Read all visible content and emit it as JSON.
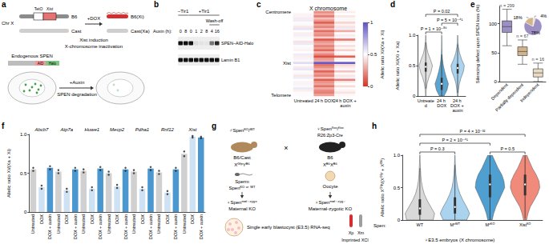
{
  "diagrams": {
    "a": {
      "panel": "a",
      "chr_label": "Chr X",
      "transgene": [
        "TetO",
        "Xist"
      ],
      "alleles": [
        "B6",
        "Cast"
      ],
      "treatment1": "+DOX",
      "treatment1_notes": [
        "Xist induction",
        "X-chromosome inactivation"
      ],
      "result_alleles": [
        "B6(Xi)",
        "Cast(Xa)"
      ],
      "treatment2": "+Auxin",
      "treatment2_note": "SPEN degradation",
      "protein": "Endogenous SPEN",
      "tags": [
        "AID",
        "Halo"
      ]
    },
    "b": {
      "panel": "b",
      "groups": [
        {
          "text": "−Tir1",
          "lanes": [
            0,
            1
          ]
        },
        {
          "text": "+Tir1",
          "lanes": [
            2,
            7
          ]
        }
      ],
      "washoff": {
        "text": "Wash-off",
        "lanes": [
          6,
          7
        ]
      },
      "time_label": "Auxin (h):",
      "lanes": [
        "0",
        "8",
        "0",
        "1",
        "2",
        "8",
        "4",
        "16"
      ],
      "bands": [
        {
          "name": "SPEN–AID-Halo",
          "intensity": [
            1,
            1,
            1,
            0.08,
            0.05,
            0.04,
            0.55,
            0.9
          ]
        },
        {
          "name": "Lamin B1",
          "intensity": [
            1,
            1,
            1,
            1,
            1,
            1,
            1,
            1
          ]
        }
      ]
    },
    "g": {
      "panel": "g",
      "father": {
        "genotype": "♂Spenᴷᴼ/ᵂᵀ",
        "strain": "B6/Cast",
        "chromosomes": "XᴳᶠᵖYᴮ⁶",
        "gamete": "Sperm",
        "gamete_genotype": "Spenᴷᴼ ᵒʳ ᵂᵀ"
      },
      "mother": {
        "genotype": "♀Spenᶠˡᵒˣ/ᶠˡᵒˣ",
        "transgene": "R26:Zp3-Cre",
        "strain": "B6",
        "chromosomes": "Xᴮ⁶Xᴮ⁶",
        "gamete": "Oocyte"
      },
      "cross": "×",
      "offspring": [
        {
          "genotype": "♀Spenᵐᵃᵗ⁻ᶻʸᵍ⁺",
          "label": "Maternal KO"
        },
        {
          "genotype": "♀Spenᵐᵃᵗ⁻ᶻʸᵍ⁻",
          "label": "Maternal-zygotic KO"
        }
      ],
      "assay": "Single early blastocyst (E3.5) RNA-seq",
      "xs": [
        "Xp",
        "Xm"
      ],
      "xci": "Imprinted XCI"
    }
  },
  "chart_data": [
    {
      "panel": "c",
      "type": "heatmap",
      "title": "X chromosome",
      "columns": [
        "Untreated",
        "24 h DOX",
        "24 h DOX + auxin"
      ],
      "rows": [
        "Centromere",
        null,
        null,
        null,
        null,
        null,
        null,
        null,
        null,
        null,
        null,
        null,
        null,
        null,
        null,
        null,
        null,
        null,
        null,
        null,
        null,
        null,
        null,
        null,
        "Xist",
        null,
        null,
        null,
        null,
        null,
        null,
        null,
        null,
        null,
        null,
        null,
        null,
        null,
        null,
        "Telomere"
      ],
      "cells": [
        [
          0.5,
          0.22,
          0.46
        ],
        [
          0.47,
          0.3,
          0.5
        ],
        [
          0.53,
          0.18,
          0.44
        ],
        [
          0.45,
          0.35,
          0.52
        ],
        [
          0.55,
          0.25,
          0.48
        ],
        [
          0.49,
          0.12,
          0.4
        ],
        [
          0.52,
          0.28,
          0.47
        ],
        [
          0.44,
          0.2,
          0.43
        ],
        [
          0.58,
          0.33,
          0.55
        ],
        [
          0.5,
          0.15,
          0.3
        ],
        [
          0.46,
          0.26,
          0.49
        ],
        [
          0.54,
          0.22,
          0.45
        ],
        [
          0.48,
          0.38,
          0.53
        ],
        [
          0.51,
          0.1,
          0.18
        ],
        [
          0.43,
          0.24,
          0.46
        ],
        [
          0.56,
          0.3,
          0.5
        ],
        [
          0.49,
          0.19,
          0.42
        ],
        [
          0.52,
          0.27,
          0.48
        ],
        [
          0.47,
          0.14,
          0.39
        ],
        [
          0.5,
          0.32,
          0.51
        ],
        [
          0.55,
          0.21,
          0.47
        ],
        [
          0.46,
          0.08,
          0.12
        ],
        [
          0.53,
          0.25,
          0.46
        ],
        [
          0.48,
          0.29,
          0.5
        ],
        [
          0.6,
          0.97,
          0.96
        ],
        [
          0.51,
          0.17,
          0.41
        ],
        [
          0.45,
          0.23,
          0.45
        ],
        [
          0.57,
          0.31,
          0.52
        ],
        [
          0.49,
          0.13,
          0.36
        ],
        [
          0.52,
          0.26,
          0.49
        ],
        [
          0.44,
          0.2,
          0.44
        ],
        [
          0.55,
          0.35,
          0.54
        ],
        [
          0.5,
          0.11,
          0.2
        ],
        [
          0.47,
          0.24,
          0.46
        ],
        [
          0.53,
          0.28,
          0.5
        ],
        [
          0.48,
          0.16,
          0.41
        ],
        [
          0.56,
          0.3,
          0.51
        ],
        [
          0.46,
          0.22,
          0.47
        ],
        [
          0.51,
          0.19,
          0.43
        ],
        [
          0.49,
          0.27,
          0.48
        ]
      ],
      "colorbar": {
        "label": "Allelic ratio Xi/(Xa + Xi)",
        "range": [
          0,
          1
        ],
        "ticks": [
          0,
          0.5,
          1
        ],
        "colors": [
          "#d7301f",
          "#ffffff",
          "#5e4fc2"
        ]
      }
    },
    {
      "panel": "d",
      "type": "violin",
      "categories": [
        "Untreated",
        "24 h DOX",
        "24 h DOX + auxin"
      ],
      "ylabel": "Allelic ratio Xi/(Xi + Xa)",
      "ylim": [
        0,
        1
      ],
      "yticks": [
        0,
        0.5,
        {
          "value": 1,
          "label": "1.0"
        }
      ],
      "density_y": [
        0,
        0.1,
        0.2,
        0.3,
        0.4,
        0.5,
        0.6,
        0.7,
        0.8,
        0.9,
        1
      ],
      "violins": [
        {
          "color": "#e0e0e0",
          "density": [
            0.02,
            0.08,
            0.2,
            0.45,
            0.8,
            1,
            0.7,
            0.35,
            0.15,
            0.05,
            0.01
          ],
          "box": [
            0.12,
            0.4,
            0.48,
            0.55,
            0.88
          ]
        },
        {
          "color": "#5ba3d0",
          "density": [
            0.35,
            0.8,
            1,
            0.7,
            0.45,
            0.25,
            0.12,
            0.05,
            0.02,
            0.01,
            0
          ],
          "box": [
            0,
            0.1,
            0.2,
            0.3,
            0.68
          ]
        },
        {
          "color": "#a9d3ee",
          "density": [
            0.05,
            0.12,
            0.25,
            0.5,
            0.85,
            1,
            0.6,
            0.3,
            0.12,
            0.04,
            0.01
          ],
          "box": [
            0.05,
            0.37,
            0.46,
            0.53,
            0.85
          ]
        }
      ],
      "comparisons": [
        {
          "pair": [
            0,
            1
          ],
          "text": "P = 1 × 10⁻⁵⁶"
        },
        {
          "pair": [
            1,
            2
          ],
          "text": "P = 5 × 10⁻⁴¹"
        },
        {
          "pair": [
            0,
            2
          ],
          "text": "P = 0.02"
        }
      ]
    },
    {
      "panel": "e",
      "type": "boxplot",
      "categories": [
        "Dependent",
        "Partially dependent",
        "Independent"
      ],
      "ylabel": "Silencing defect upon SPEN loss (%)",
      "ylim": [
        0,
        130
      ],
      "yticks": [
        0,
        50,
        100
      ],
      "boxes": [
        [
          62,
          85,
          95,
          105,
          125
        ],
        [
          30,
          45,
          52,
          60,
          72
        ],
        [
          0,
          8,
          15,
          22,
          32
        ]
      ],
      "n_labels": [
        "n = 299",
        "n = 67",
        "n = 16"
      ],
      "colors": [
        "#9b8fc4",
        "#d2b48c",
        "#e9dcc6"
      ],
      "inset": {
        "type": "pie",
        "values": [
          78,
          18,
          4
        ],
        "value_labels": [
          "78%",
          "18%",
          "4%"
        ],
        "colors": [
          "#9b8fc4",
          "#d2b48c",
          "#e9dcc6"
        ]
      }
    },
    {
      "panel": "f",
      "type": "bar",
      "categories": [
        "Abcb7",
        "Atp7a",
        "Huwe1",
        "Mecp2",
        "Pdha1",
        "Rnf12",
        "Xist"
      ],
      "ylabel": "Allelic ratio Xi/(Xa + Xi)",
      "ylim": [
        0,
        1
      ],
      "yticks": [
        0,
        0.5,
        {
          "value": 1,
          "label": "1.0"
        }
      ],
      "series": [
        {
          "name": "Untreated",
          "color": "#d0d0d0",
          "values": [
            0.55,
            0.52,
            0.53,
            0.5,
            0.52,
            0.51,
            0.75
          ],
          "points": [
            [
              0.53,
              0.57
            ],
            [
              0.5,
              0.54
            ],
            [
              0.51,
              0.55
            ],
            [
              0.48,
              0.52
            ],
            [
              0.5,
              0.54
            ],
            [
              0.49,
              0.53
            ],
            [
              0.72,
              0.78
            ]
          ]
        },
        {
          "name": "DOX",
          "color": "#cfe2f3",
          "values": [
            0.32,
            0.28,
            0.3,
            0.33,
            0.3,
            0.25,
            0.97
          ],
          "points": [
            [
              0.3,
              0.34
            ],
            [
              0.26,
              0.3
            ],
            [
              0.28,
              0.32
            ],
            [
              0.31,
              0.35
            ],
            [
              0.28,
              0.32
            ],
            [
              0.23,
              0.27
            ],
            [
              0.96,
              0.98
            ]
          ]
        },
        {
          "name": "DOX + auxin",
          "color": "#4a98cf",
          "values": [
            0.57,
            0.55,
            0.56,
            0.55,
            0.56,
            0.55,
            0.96
          ],
          "points": [
            [
              0.55,
              0.59
            ],
            [
              0.53,
              0.57
            ],
            [
              0.54,
              0.58
            ],
            [
              0.53,
              0.57
            ],
            [
              0.54,
              0.58
            ],
            [
              0.53,
              0.57
            ],
            [
              0.95,
              0.97
            ]
          ]
        }
      ]
    },
    {
      "panel": "h",
      "type": "violin",
      "subtitle": "♀E3.5 embryos (X chromosome)",
      "category_prefix": "Spen:",
      "categories": [
        "WT",
        "Mᶻᵂᵀ",
        "Mᶻᴷᴼ",
        "Xistᴷᴼ"
      ],
      "ylabel": "Allelic ratio Xᴳᶠᵖ/(Xᴳᶠᵖ + Xᴮ⁶)",
      "ylim": [
        0,
        1
      ],
      "yticks": [
        0,
        0.5,
        {
          "value": 1,
          "label": "1.0"
        }
      ],
      "density_y": [
        0,
        0.1,
        0.2,
        0.3,
        0.4,
        0.5,
        0.6,
        0.7,
        0.8,
        0.9,
        1
      ],
      "violins": [
        {
          "color": "#d9d9d9",
          "density": [
            0.9,
            1,
            0.75,
            0.5,
            0.3,
            0.18,
            0.1,
            0.06,
            0.04,
            0.02,
            0.01
          ],
          "box": [
            0,
            0.08,
            0.18,
            0.32,
            0.8
          ]
        },
        {
          "color": "#a9d3ee",
          "density": [
            0.8,
            1,
            0.8,
            0.55,
            0.35,
            0.2,
            0.12,
            0.07,
            0.04,
            0.02,
            0.01
          ],
          "box": [
            0,
            0.1,
            0.2,
            0.35,
            0.85
          ]
        },
        {
          "color": "#4f9fd1",
          "density": [
            0.15,
            0.25,
            0.4,
            0.6,
            0.8,
            1,
            0.95,
            0.8,
            0.55,
            0.35,
            0.15
          ],
          "box": [
            0,
            0.35,
            0.55,
            0.7,
            1
          ]
        },
        {
          "color": "#f08a7a",
          "density": [
            0.1,
            0.2,
            0.35,
            0.6,
            0.85,
            1,
            0.95,
            0.75,
            0.5,
            0.3,
            0.12
          ],
          "box": [
            0.02,
            0.38,
            0.55,
            0.7,
            1
          ]
        }
      ],
      "comparisons": [
        {
          "pair": [
            0,
            3
          ],
          "text": "P = 4 × 10⁻³²"
        },
        {
          "pair": [
            0,
            2
          ],
          "text": "P = 2 × 10⁻⁴¹"
        },
        {
          "pair": [
            0,
            1
          ],
          "text": "P = 0.3"
        },
        {
          "pair": [
            2,
            3
          ],
          "text": "P = 0.5"
        }
      ]
    }
  ]
}
